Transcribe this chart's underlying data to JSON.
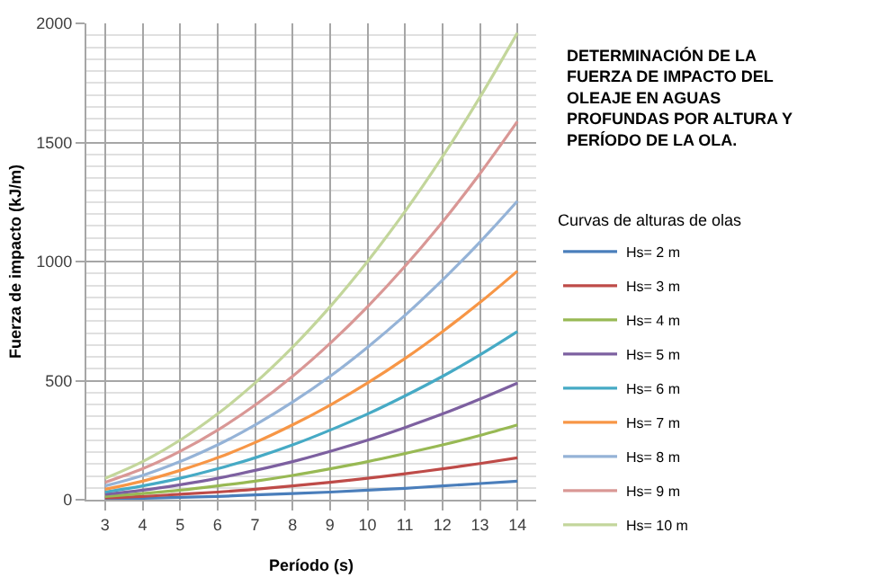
{
  "chart_data": {
    "type": "line",
    "title": "DETERMINACIÓN DE LA FUERZA DE IMPACTO DEL OLEAJE EN AGUAS PROFUNDAS POR ALTURA Y PERÍODO DE LA OLA.",
    "xlabel": "Período (s)",
    "ylabel": "Fuerza de impacto (kJ/m)",
    "legend_title": "Curvas de alturas de olas",
    "legend": "right",
    "grid": true,
    "marker": "none",
    "line_style": "solid",
    "x": [
      3,
      4,
      5,
      6,
      7,
      8,
      9,
      10,
      11,
      12,
      13,
      14
    ],
    "xlim": [
      2.5,
      14.5
    ],
    "xticks": [
      3,
      4,
      5,
      6,
      7,
      8,
      9,
      10,
      11,
      12,
      13,
      14
    ],
    "ylim": [
      0,
      2000
    ],
    "yticks": [
      0,
      500,
      1000,
      1500,
      2000
    ],
    "series": [
      {
        "name": "Hs= 2 m",
        "color": "#4a7ebb",
        "values": [
          4,
          6,
          10,
          14,
          20,
          26,
          32,
          40,
          48,
          58,
          68,
          78
        ]
      },
      {
        "name": "Hs= 3 m",
        "color": "#be4b48",
        "values": [
          8,
          14,
          23,
          32,
          44,
          58,
          73,
          90,
          109,
          130,
          152,
          176
        ]
      },
      {
        "name": "Hs= 4 m",
        "color": "#98b954",
        "values": [
          14,
          26,
          40,
          58,
          78,
          102,
          130,
          160,
          194,
          230,
          270,
          314
        ]
      },
      {
        "name": "Hs= 5 m",
        "color": "#7d60a0",
        "values": [
          23,
          40,
          63,
          90,
          123,
          160,
          203,
          250,
          303,
          360,
          423,
          490
        ]
      },
      {
        "name": "Hs= 6 m",
        "color": "#46aac5",
        "values": [
          32,
          58,
          90,
          130,
          176,
          230,
          292,
          360,
          436,
          518,
          608,
          706
        ]
      },
      {
        "name": "Hs= 7 m",
        "color": "#f79646",
        "values": [
          44,
          78,
          123,
          176,
          240,
          314,
          397,
          490,
          593,
          706,
          828,
          960
        ]
      },
      {
        "name": "Hs= 8 m",
        "color": "#95b3d7",
        "values": [
          58,
          102,
          160,
          230,
          314,
          410,
          518,
          640,
          774,
          922,
          1082,
          1254
        ]
      },
      {
        "name": "Hs= 9 m",
        "color": "#d99795",
        "values": [
          73,
          130,
          203,
          292,
          397,
          518,
          656,
          810,
          980,
          1166,
          1369,
          1588
        ]
      },
      {
        "name": "Hs= 10 m",
        "color": "#c3d69b",
        "values": [
          90,
          160,
          250,
          360,
          490,
          640,
          810,
          1000,
          1210,
          1440,
          1690,
          1960
        ]
      }
    ]
  }
}
